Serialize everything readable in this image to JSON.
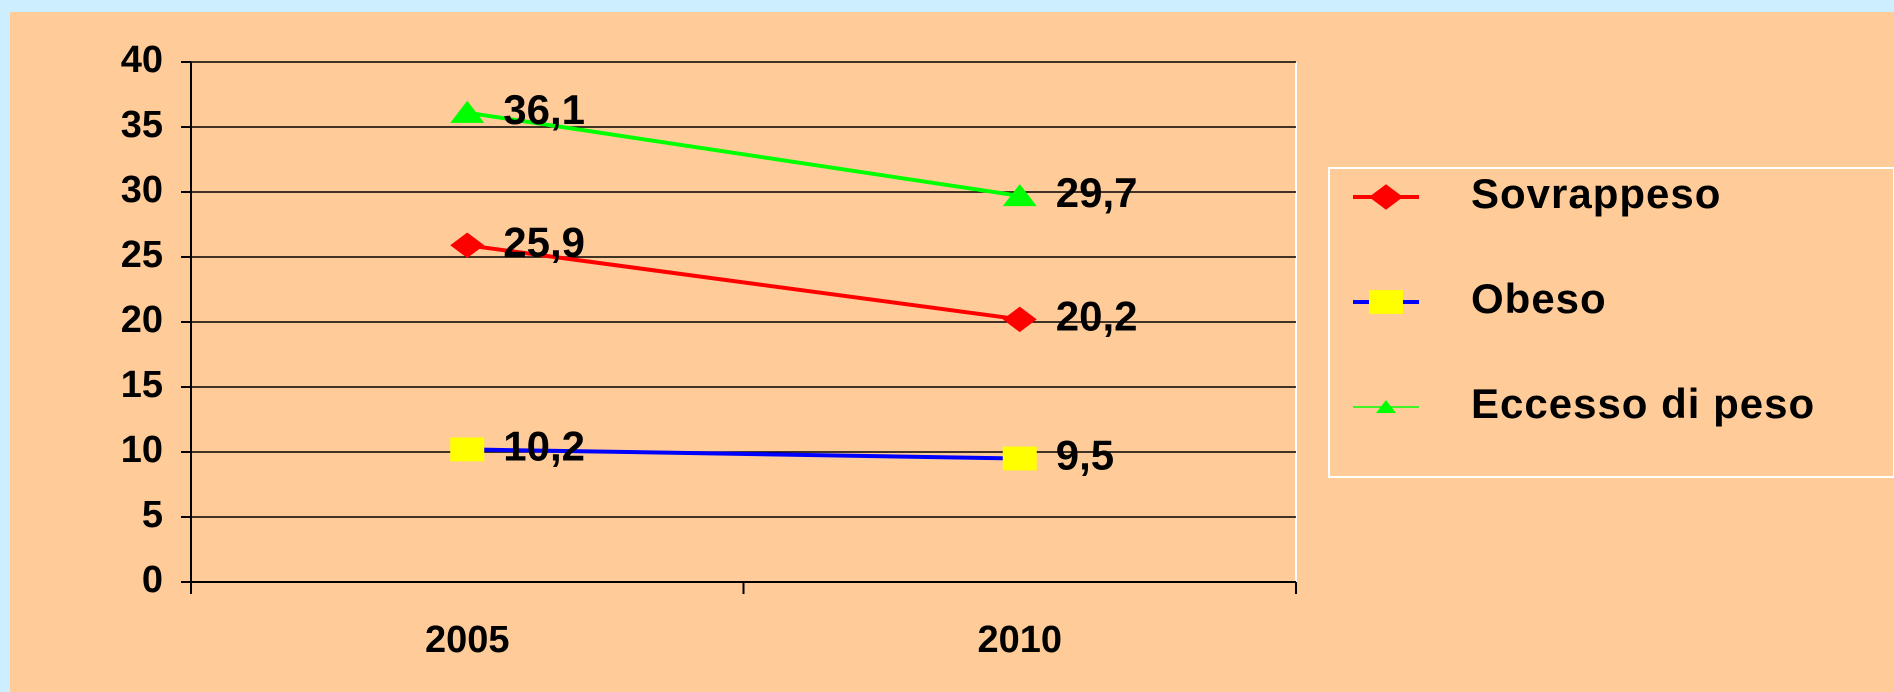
{
  "chart_data": {
    "type": "line",
    "categories": [
      "2005",
      "2010"
    ],
    "series": [
      {
        "name": "Sovrappeso",
        "color": "#ff0000",
        "marker": "diamond",
        "marker_color": "#ff0000",
        "values": [
          25.9,
          20.2
        ],
        "value_labels": [
          "25,9",
          "20,2"
        ]
      },
      {
        "name": "Obeso",
        "color": "#0000ff",
        "marker": "square",
        "marker_color": "#ffff00",
        "values": [
          10.2,
          9.5
        ],
        "value_labels": [
          "10,2",
          "9,5"
        ]
      },
      {
        "name": "Eccesso di peso",
        "color": "#00ff00",
        "marker": "triangle",
        "marker_color": "#00ff00",
        "values": [
          36.1,
          29.7
        ],
        "value_labels": [
          "36,1",
          "29,7"
        ]
      }
    ],
    "ylim": [
      0,
      40
    ],
    "yticks": [
      0,
      5,
      10,
      15,
      20,
      25,
      30,
      35,
      40
    ],
    "grid": true,
    "legend": "right"
  }
}
